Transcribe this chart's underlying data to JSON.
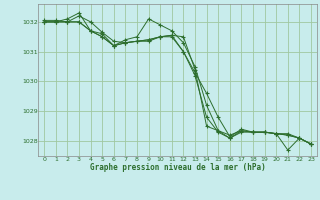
{
  "background_color": "#c8ecec",
  "grid_color": "#a0c8a0",
  "line_color": "#2d6e2d",
  "title": "Graphe pression niveau de la mer (hPa)",
  "title_color": "#2d6e2d",
  "xlim": [
    -0.5,
    23.5
  ],
  "ylim": [
    1027.5,
    1032.6
  ],
  "yticks": [
    1028,
    1029,
    1030,
    1031,
    1032
  ],
  "xticks": [
    0,
    1,
    2,
    3,
    4,
    5,
    6,
    7,
    8,
    9,
    10,
    11,
    12,
    13,
    14,
    15,
    16,
    17,
    18,
    19,
    20,
    21,
    22,
    23
  ],
  "series": [
    [
      1032.0,
      1032.0,
      1032.1,
      1032.3,
      1031.7,
      1031.6,
      1031.2,
      1031.4,
      1031.5,
      1032.1,
      1031.9,
      1031.7,
      1031.3,
      1030.5,
      1029.2,
      1028.35,
      1028.1,
      1028.35,
      1028.3,
      1028.3,
      1028.25,
      1027.7,
      1028.1,
      1027.9
    ],
    [
      1032.0,
      1032.0,
      1032.0,
      1032.0,
      1031.7,
      1031.5,
      1031.2,
      1031.3,
      1031.35,
      1031.4,
      1031.5,
      1031.5,
      1031.0,
      1030.3,
      1029.6,
      1028.8,
      1028.15,
      1028.4,
      1028.3,
      1028.3,
      1028.25,
      1028.2,
      1028.1,
      1027.9
    ],
    [
      1032.0,
      1032.0,
      1032.0,
      1032.0,
      1031.7,
      1031.5,
      1031.2,
      1031.3,
      1031.35,
      1031.4,
      1031.5,
      1031.55,
      1031.0,
      1030.2,
      1028.8,
      1028.3,
      1028.1,
      1028.3,
      1028.3,
      1028.3,
      1028.25,
      1028.2,
      1028.1,
      1027.9
    ],
    [
      1032.05,
      1032.05,
      1032.0,
      1032.2,
      1032.0,
      1031.65,
      1031.35,
      1031.3,
      1031.35,
      1031.35,
      1031.5,
      1031.55,
      1031.5,
      1030.4,
      1028.5,
      1028.35,
      1028.2,
      1028.35,
      1028.3,
      1028.3,
      1028.25,
      1028.25,
      1028.1,
      1027.9
    ]
  ],
  "figsize": [
    3.2,
    2.0
  ],
  "dpi": 100
}
